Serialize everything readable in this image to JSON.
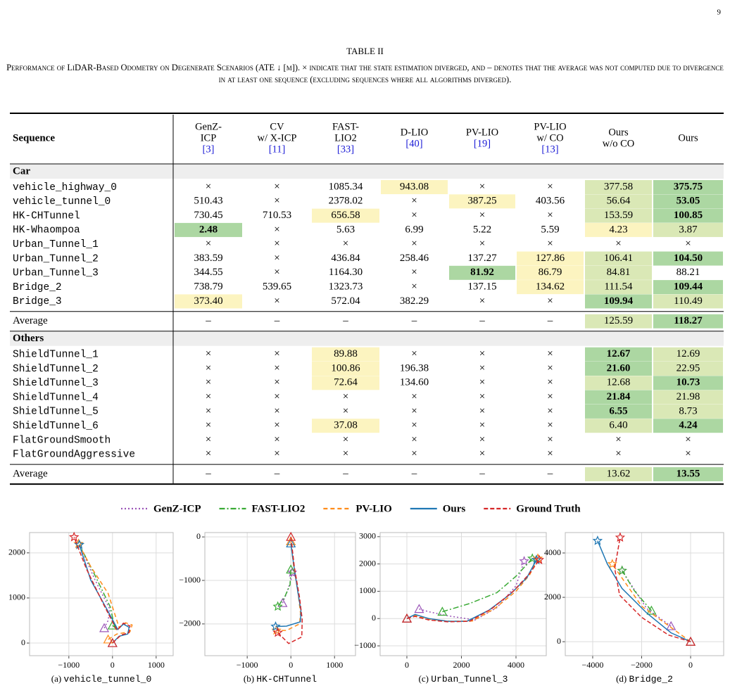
{
  "page_number": "9",
  "table": {
    "label": "TABLE II",
    "caption": "Performance of LiDAR-Based Odometry on Degenerate Scenarios (ATE ↓ [m]). × indicate that the state estimation diverged, and – denotes that the average was not computed due to divergence in at least one sequence (excluding sequences where all algorithms diverged).",
    "sequence_header": "Sequence",
    "headers": [
      {
        "lines": [
          "GenZ-",
          "ICP"
        ],
        "ref": "[3]"
      },
      {
        "lines": [
          "CV",
          "w/ X-ICP"
        ],
        "ref": "[11]"
      },
      {
        "lines": [
          "FAST-",
          "LIO2"
        ],
        "ref": "[33]"
      },
      {
        "lines": [
          "D-LIO"
        ],
        "ref": "[40]"
      },
      {
        "lines": [
          "PV-LIO"
        ],
        "ref": "[19]"
      },
      {
        "lines": [
          "PV-LIO",
          "w/ CO"
        ],
        "ref": "[13]"
      },
      {
        "lines": [
          "Ours",
          "w/o CO"
        ]
      },
      {
        "lines": [
          "Ours"
        ]
      }
    ],
    "highlight_colors": {
      "best": "#acd7a2",
      "second": "#dae8b6",
      "third": "#fcf4c0"
    },
    "bold_highlight": "best",
    "sections": [
      {
        "name": "Car",
        "rows": [
          {
            "sequence": "vehicle_highway_0",
            "cells": [
              "×",
              "×",
              "1085.34",
              "943.08",
              "×",
              "×",
              "377.58",
              "375.75"
            ],
            "highlight": [
              null,
              null,
              null,
              "third",
              null,
              null,
              "second",
              "best"
            ]
          },
          {
            "sequence": "vehicle_tunnel_0",
            "cells": [
              "510.43",
              "×",
              "2378.02",
              "×",
              "387.25",
              "403.56",
              "56.64",
              "53.05"
            ],
            "highlight": [
              null,
              null,
              null,
              null,
              "third",
              null,
              "second",
              "best"
            ]
          },
          {
            "sequence": "HK-CHTunnel",
            "cells": [
              "730.45",
              "710.53",
              "656.58",
              "×",
              "×",
              "×",
              "153.59",
              "100.85"
            ],
            "highlight": [
              null,
              null,
              "third",
              null,
              null,
              null,
              "second",
              "best"
            ]
          },
          {
            "sequence": "HK-Whaompoa",
            "cells": [
              "2.48",
              "×",
              "5.63",
              "6.99",
              "5.22",
              "5.59",
              "4.23",
              "3.87"
            ],
            "highlight": [
              "best",
              null,
              null,
              null,
              null,
              null,
              "third",
              "second"
            ]
          },
          {
            "sequence": "Urban_Tunnel_1",
            "cells": [
              "×",
              "×",
              "×",
              "×",
              "×",
              "×",
              "×",
              "×"
            ],
            "highlight": [
              null,
              null,
              null,
              null,
              null,
              null,
              null,
              null
            ]
          },
          {
            "sequence": "Urban_Tunnel_2",
            "cells": [
              "383.59",
              "×",
              "436.84",
              "258.46",
              "137.27",
              "127.86",
              "106.41",
              "104.50"
            ],
            "highlight": [
              null,
              null,
              null,
              null,
              null,
              "third",
              "second",
              "best"
            ]
          },
          {
            "sequence": "Urban_Tunnel_3",
            "cells": [
              "344.55",
              "×",
              "1164.30",
              "×",
              "81.92",
              "86.79",
              "84.81",
              "88.21"
            ],
            "highlight": [
              null,
              null,
              null,
              null,
              "best",
              "third",
              "second",
              null
            ]
          },
          {
            "sequence": "Bridge_2",
            "cells": [
              "738.79",
              "539.65",
              "1323.73",
              "×",
              "137.15",
              "134.62",
              "111.54",
              "109.44"
            ],
            "highlight": [
              null,
              null,
              null,
              null,
              null,
              "third",
              "second",
              "best"
            ]
          },
          {
            "sequence": "Bridge_3",
            "cells": [
              "373.40",
              "×",
              "572.04",
              "382.29",
              "×",
              "×",
              "109.94",
              "110.49"
            ],
            "highlight": [
              "third",
              null,
              null,
              null,
              null,
              null,
              "best",
              "second"
            ]
          }
        ],
        "average": {
          "label": "Average",
          "cells": [
            "–",
            "–",
            "–",
            "–",
            "–",
            "–",
            "125.59",
            "118.27"
          ],
          "highlight": [
            null,
            null,
            null,
            null,
            null,
            null,
            "second",
            "best"
          ]
        }
      },
      {
        "name": "Others",
        "rows": [
          {
            "sequence": "ShieldTunnel_1",
            "cells": [
              "×",
              "×",
              "89.88",
              "×",
              "×",
              "×",
              "12.67",
              "12.69"
            ],
            "highlight": [
              null,
              null,
              "third",
              null,
              null,
              null,
              "best",
              "second"
            ]
          },
          {
            "sequence": "ShieldTunnel_2",
            "cells": [
              "×",
              "×",
              "100.86",
              "196.38",
              "×",
              "×",
              "21.60",
              "22.95"
            ],
            "highlight": [
              null,
              null,
              "third",
              null,
              null,
              null,
              "best",
              "second"
            ]
          },
          {
            "sequence": "ShieldTunnel_3",
            "cells": [
              "×",
              "×",
              "72.64",
              "134.60",
              "×",
              "×",
              "12.68",
              "10.73"
            ],
            "highlight": [
              null,
              null,
              "third",
              null,
              null,
              null,
              "second",
              "best"
            ]
          },
          {
            "sequence": "ShieldTunnel_4",
            "cells": [
              "×",
              "×",
              "×",
              "×",
              "×",
              "×",
              "21.84",
              "21.98"
            ],
            "highlight": [
              null,
              null,
              null,
              null,
              null,
              null,
              "best",
              "second"
            ]
          },
          {
            "sequence": "ShieldTunnel_5",
            "cells": [
              "×",
              "×",
              "×",
              "×",
              "×",
              "×",
              "6.55",
              "8.73"
            ],
            "highlight": [
              null,
              null,
              null,
              null,
              null,
              null,
              "best",
              "second"
            ]
          },
          {
            "sequence": "ShieldTunnel_6",
            "cells": [
              "×",
              "×",
              "37.08",
              "×",
              "×",
              "×",
              "6.40",
              "4.24"
            ],
            "highlight": [
              null,
              null,
              "third",
              null,
              null,
              null,
              "second",
              "best"
            ]
          },
          {
            "sequence": "FlatGroundSmooth",
            "cells": [
              "×",
              "×",
              "×",
              "×",
              "×",
              "×",
              "×",
              "×"
            ],
            "highlight": [
              null,
              null,
              null,
              null,
              null,
              null,
              null,
              null
            ]
          },
          {
            "sequence": "FlatGroundAggressive",
            "cells": [
              "×",
              "×",
              "×",
              "×",
              "×",
              "×",
              "×",
              "×"
            ],
            "highlight": [
              null,
              null,
              null,
              null,
              null,
              null,
              null,
              null
            ]
          }
        ],
        "average": {
          "label": "Average",
          "cells": [
            "–",
            "–",
            "–",
            "–",
            "–",
            "–",
            "13.62",
            "13.55"
          ],
          "highlight": [
            null,
            null,
            null,
            null,
            null,
            null,
            "second",
            "best"
          ]
        }
      }
    ]
  },
  "legend": [
    {
      "name": "GenZ-ICP",
      "color": "#9b55b8",
      "dash": "2,3"
    },
    {
      "name": "FAST-LIO2",
      "color": "#3aaa35",
      "dash": "8,3,2,3"
    },
    {
      "name": "PV-LIO",
      "color": "#ff8c1a",
      "dash": "6,4"
    },
    {
      "name": "Ours",
      "color": "#1f77b4",
      "dash": "none"
    },
    {
      "name": "Ground Truth",
      "color": "#d62728",
      "dash": "6,3"
    }
  ],
  "plots": [
    {
      "caption_label": "(a)",
      "caption_name": "vehicle_tunnel_0",
      "xlim": [
        -1900,
        1390
      ],
      "ylim": [
        -280,
        2450
      ],
      "xticks": [
        {
          "value": -1000,
          "label": "−1000"
        },
        0,
        1000
      ],
      "yticks": [
        0,
        1000,
        2000
      ],
      "series": [
        {
          "name": "GenZ-ICP",
          "x": [
            -190,
            -100,
            -60,
            -400,
            -760
          ],
          "y": [
            330,
            500,
            750,
            1400,
            2180
          ]
        },
        {
          "name": "FAST-LIO2",
          "x": [
            0,
            50,
            -50,
            -400,
            -760
          ],
          "y": [
            390,
            350,
            800,
            1500,
            2180
          ]
        },
        {
          "name": "PV-LIO",
          "x": [
            -100,
            100,
            400,
            450,
            300,
            150,
            -100,
            -500,
            -780
          ],
          "y": [
            80,
            200,
            250,
            400,
            450,
            350,
            1100,
            1700,
            2200
          ]
        },
        {
          "name": "Ours",
          "x": [
            0,
            150,
            350,
            380,
            250,
            120,
            -100,
            -500,
            -760
          ],
          "y": [
            0,
            150,
            200,
            350,
            420,
            300,
            700,
            1400,
            2180
          ]
        },
        {
          "name": "Ground Truth",
          "x": [
            0,
            200,
            380,
            400,
            250,
            100,
            -200,
            -600,
            -880
          ],
          "y": [
            0,
            180,
            230,
            380,
            440,
            280,
            850,
            1650,
            2350
          ]
        }
      ]
    },
    {
      "caption_label": "(b)",
      "caption_name": "HK-CHTunnel",
      "xlim": [
        -1970,
        1480
      ],
      "ylim": [
        -2730,
        100
      ],
      "xticks": [
        {
          "value": -1000,
          "label": "−1000"
        },
        0,
        1000
      ],
      "yticks": [
        {
          "value": -2000,
          "label": "−2000"
        },
        {
          "value": -1000,
          "label": "−1000"
        },
        0
      ],
      "series": [
        {
          "name": "GenZ-ICP",
          "x": [
            -190,
            -100,
            0,
            30
          ],
          "y": [
            -1520,
            -1300,
            -1000,
            -820
          ]
        },
        {
          "name": "FAST-LIO2",
          "x": [
            0,
            -20,
            -150,
            -300
          ],
          "y": [
            -750,
            -1100,
            -1400,
            -1600
          ]
        },
        {
          "name": "PV-LIO",
          "x": [
            0,
            60,
            160,
            220,
            200,
            -100,
            -330
          ],
          "y": [
            -100,
            -650,
            -1250,
            -1750,
            -2000,
            -2150,
            -2150
          ]
        },
        {
          "name": "Ours",
          "x": [
            0,
            60,
            150,
            230,
            220,
            -100,
            -350
          ],
          "y": [
            -150,
            -600,
            -1200,
            -1700,
            -1950,
            -2050,
            -2060
          ]
        },
        {
          "name": "Ground Truth",
          "x": [
            0,
            80,
            200,
            260,
            250,
            -50,
            -300
          ],
          "y": [
            0,
            -700,
            -1400,
            -1900,
            -2300,
            -2450,
            -2200
          ]
        }
      ]
    },
    {
      "caption_label": "(c)",
      "caption_name": "Urban_Tunnel_3",
      "xlim": [
        -980,
        5110
      ],
      "ylim": [
        -1360,
        3150
      ],
      "xticks": [
        0,
        2000,
        4000
      ],
      "yticks": [
        {
          "value": -1000,
          "label": "−1000"
        },
        0,
        1000,
        2000,
        3000
      ],
      "series": [
        {
          "name": "GenZ-ICP",
          "x": [
            450,
            800,
            1500,
            2500,
            3300,
            4000,
            4300
          ],
          "y": [
            350,
            250,
            100,
            -50,
            400,
            1200,
            2100
          ]
        },
        {
          "name": "FAST-LIO2",
          "x": [
            1300,
            2300,
            3300,
            4000,
            4600
          ],
          "y": [
            250,
            550,
            950,
            1550,
            2200
          ]
        },
        {
          "name": "PV-LIO",
          "x": [
            0,
            300,
            800,
            1600,
            2400,
            3200,
            4000,
            4500,
            4800
          ],
          "y": [
            0,
            120,
            -30,
            -100,
            -90,
            350,
            1000,
            1600,
            2200
          ]
        },
        {
          "name": "Ours",
          "x": [
            0,
            300,
            800,
            1500,
            2200,
            3000,
            3800,
            4400,
            4750
          ],
          "y": [
            0,
            150,
            0,
            -100,
            -100,
            300,
            900,
            1500,
            2150
          ]
        },
        {
          "name": "Ground Truth",
          "x": [
            0,
            300,
            800,
            1500,
            2300,
            3100,
            3900,
            4500,
            4850
          ],
          "y": [
            0,
            80,
            -50,
            -120,
            -100,
            350,
            1000,
            1650,
            2150
          ]
        }
      ]
    },
    {
      "caption_label": "(d)",
      "caption_name": "Bridge_2",
      "xlim": [
        -5120,
        1350
      ],
      "ylim": [
        -630,
        4920
      ],
      "xticks": [
        {
          "value": -4000,
          "label": "−4000"
        },
        {
          "value": -2000,
          "label": "−2000"
        },
        0
      ],
      "yticks": [
        0,
        2000,
        4000
      ],
      "series": [
        {
          "name": "GenZ-ICP",
          "x": [
            -800,
            -1800,
            -2800
          ],
          "y": [
            700,
            1500,
            3200
          ]
        },
        {
          "name": "FAST-LIO2",
          "x": [
            -1600,
            -2300,
            -2800
          ],
          "y": [
            1400,
            2300,
            3200
          ]
        },
        {
          "name": "PV-LIO",
          "x": [
            0,
            -1000,
            -2000,
            -3200
          ],
          "y": [
            0,
            800,
            1600,
            3500
          ]
        },
        {
          "name": "Ours",
          "x": [
            0,
            -800,
            -1800,
            -2800,
            -3400,
            -3800
          ],
          "y": [
            0,
            400,
            1300,
            2400,
            3500,
            4550
          ]
        },
        {
          "name": "Ground Truth",
          "x": [
            0,
            -900,
            -2000,
            -2900,
            -3100,
            -2880
          ],
          "y": [
            0,
            300,
            1100,
            2100,
            3300,
            4700
          ]
        }
      ]
    }
  ]
}
